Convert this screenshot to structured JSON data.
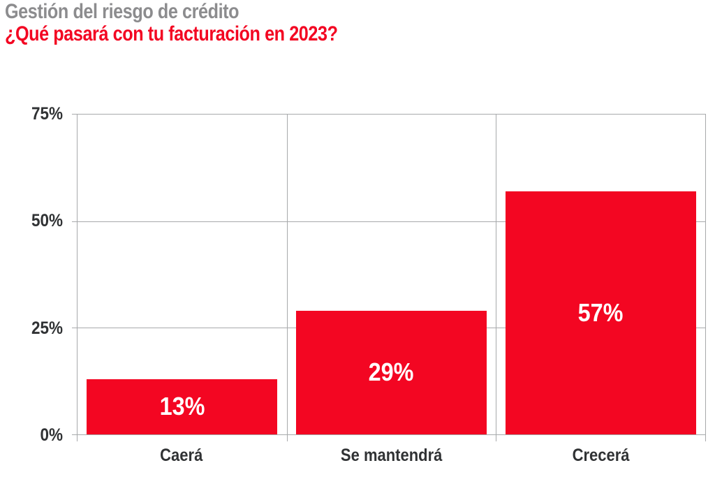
{
  "header": {
    "title": "Gestión del riesgo de crédito",
    "subtitle": "¿Qué pasará con tu facturación en 2023?"
  },
  "chart_data": {
    "type": "bar",
    "title": "Gestión del riesgo de crédito",
    "subtitle": "¿Qué pasará con tu facturación en 2023?",
    "categories": [
      "Caerá",
      "Se mantendrá",
      "Crecerá"
    ],
    "values": [
      13,
      29,
      57
    ],
    "value_labels": [
      "13%",
      "29%",
      "57%"
    ],
    "xlabel": "",
    "ylabel": "",
    "ylim": [
      0,
      75
    ],
    "yticks": [
      {
        "value": 75,
        "label": "75%"
      },
      {
        "value": 50,
        "label": "50%"
      },
      {
        "value": 25,
        "label": "25%"
      },
      {
        "value": 0,
        "label": "0%"
      }
    ],
    "grid": true,
    "legend_position": "none",
    "bar_color": "#f30622",
    "value_label_color": "#ffffff"
  },
  "colors": {
    "title_gray": "#8c8c8e",
    "accent_red": "#f30622",
    "axis_text": "#303234",
    "gridline": "#a7a9ab",
    "background": "#ffffff"
  }
}
